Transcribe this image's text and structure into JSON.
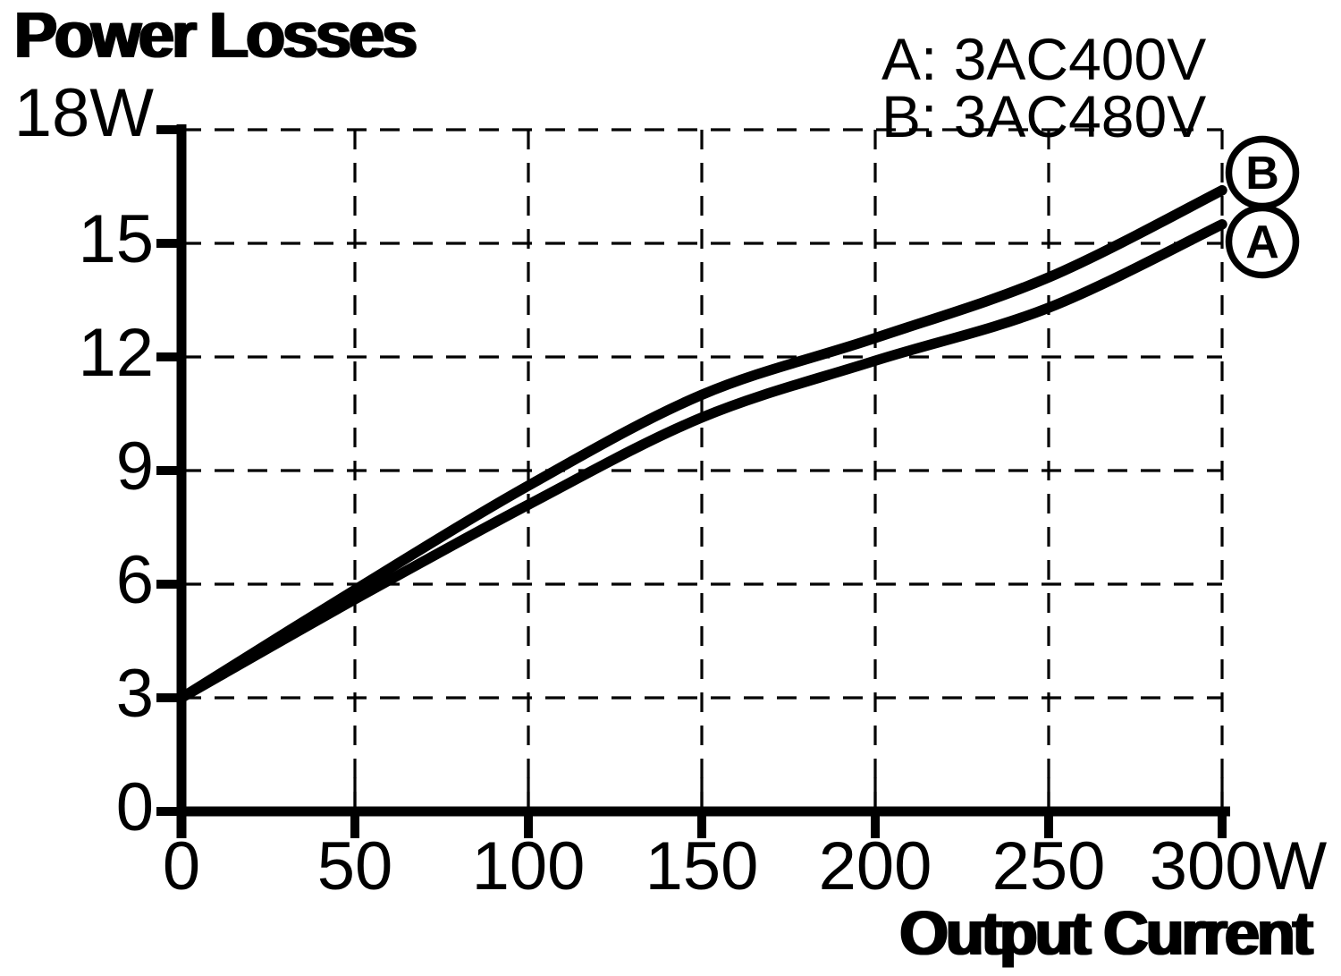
{
  "page": {
    "background": "#ffffff",
    "ink": "#000000"
  },
  "chart": {
    "title": "Power Losses",
    "x_axis_label": "Output Current",
    "legend": {
      "items": [
        "A: 3AC400V",
        "B: 3AC480V"
      ]
    }
  },
  "chart_data": {
    "type": "line",
    "title": "Power Losses",
    "xlabel": "Output Current",
    "ylabel": "Power Losses",
    "x_unit": "W",
    "y_unit": "W",
    "x": [
      0,
      50,
      100,
      150,
      200,
      250,
      300
    ],
    "xlim": [
      0,
      300
    ],
    "ylim": [
      0,
      18
    ],
    "xtick_values": [
      0,
      50,
      100,
      150,
      200,
      250,
      300
    ],
    "xtick_labels": [
      "0",
      "50",
      "100",
      "150",
      "200",
      "250",
      "300W"
    ],
    "ytick_values": [
      0,
      3,
      6,
      9,
      12,
      15,
      18
    ],
    "ytick_labels": [
      "0",
      "3",
      "6",
      "9",
      "12",
      "15",
      "18W"
    ],
    "grid": "dashed",
    "legend_position": "top-right",
    "line_color": "#000000",
    "series": [
      {
        "name": "A: 3AC400V",
        "marker": "A",
        "color": "#000000",
        "values": [
          3.0,
          5.6,
          8.1,
          10.4,
          11.9,
          13.3,
          15.5
        ]
      },
      {
        "name": "B: 3AC480V",
        "marker": "B",
        "color": "#000000",
        "values": [
          3.0,
          5.85,
          8.6,
          11.0,
          12.5,
          14.1,
          16.4
        ]
      }
    ],
    "end_markers": [
      {
        "label": "B"
      },
      {
        "label": "A"
      }
    ]
  }
}
